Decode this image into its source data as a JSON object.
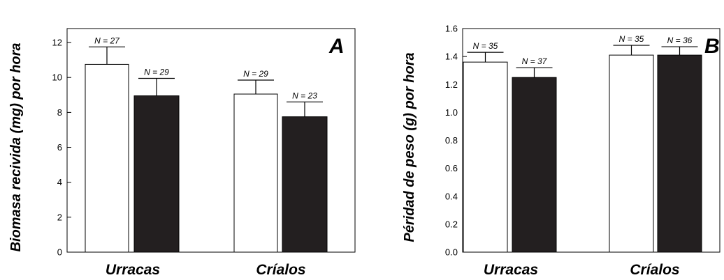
{
  "chart_data": [
    {
      "type": "bar",
      "panel_label": "A",
      "ylabel": "Biomasa recivida (mg) por hora",
      "ylim": [
        0,
        12.8
      ],
      "yticks": [
        "0",
        "2",
        "4",
        "6",
        "8",
        "10",
        "12"
      ],
      "categories": [
        "Urracas",
        "Críalos"
      ],
      "series": [
        {
          "fill": "#ffffff",
          "values": [
            10.75,
            8.95
          ],
          "errors": [
            1.0,
            1.0
          ],
          "n_labels": [
            "N = 27",
            "N = 29"
          ]
        },
        {
          "fill": "#231f20",
          "values": [
            9.05,
            7.75
          ],
          "errors": [
            0.8,
            0.85
          ],
          "n_labels": [
            "N = 29",
            "N = 23"
          ]
        }
      ],
      "grid": false
    },
    {
      "type": "bar",
      "panel_label": "B",
      "ylabel": "Péridad de peso (g) por hora",
      "ylim": [
        0,
        1.6
      ],
      "yticks": [
        "0.0",
        "0.2",
        "0.4",
        "0.6",
        "0.8",
        "1.0",
        "1.2",
        "1.4",
        "1.6"
      ],
      "categories": [
        "Urracas",
        "Críalos"
      ],
      "series": [
        {
          "fill": "#ffffff",
          "values": [
            1.36,
            1.25
          ],
          "errors": [
            0.07,
            0.07
          ],
          "n_labels": [
            "N = 35",
            "N = 37"
          ]
        },
        {
          "fill": "#231f20",
          "values": [
            1.41,
            1.41
          ],
          "errors": [
            0.07,
            0.06
          ],
          "n_labels": [
            "N = 35",
            "N = 36"
          ]
        }
      ],
      "grid": false
    }
  ]
}
